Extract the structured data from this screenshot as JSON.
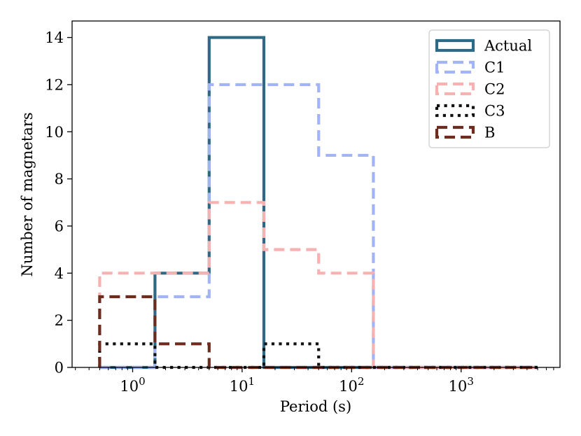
{
  "chart_data": {
    "type": "histogram-step",
    "title": "",
    "xlabel": "Period (s)",
    "ylabel": "Number of magnetars",
    "xscale": "log",
    "xlim": [
      0.28,
      8000
    ],
    "ylim": [
      0,
      14.7
    ],
    "x_ticks": [
      {
        "value": 1,
        "base": "10",
        "exp": "0"
      },
      {
        "value": 10,
        "base": "10",
        "exp": "1"
      },
      {
        "value": 100,
        "base": "10",
        "exp": "2"
      },
      {
        "value": 1000,
        "base": "10",
        "exp": "3"
      }
    ],
    "y_ticks": [
      0,
      2,
      4,
      6,
      8,
      10,
      12,
      14
    ],
    "bin_edges": [
      0.5,
      1.6,
      5.0,
      15.8,
      50,
      158,
      500,
      1580,
      5000
    ],
    "legend_position": "top-right",
    "series": [
      {
        "name": "Actual",
        "style": "solid",
        "color": "#2e6985",
        "values": [
          0,
          4,
          14,
          0,
          0,
          0,
          0,
          0
        ]
      },
      {
        "name": "C1",
        "style": "dashed",
        "color": "#a2b4f5",
        "values": [
          0,
          3,
          12,
          12,
          9,
          0,
          0,
          0
        ]
      },
      {
        "name": "C2",
        "style": "dashed",
        "color": "#f7b1b0",
        "values": [
          4,
          4,
          7,
          5,
          4,
          0,
          0,
          0
        ]
      },
      {
        "name": "C3",
        "style": "dotted",
        "color": "#111111",
        "values": [
          1,
          0,
          0,
          1,
          0,
          0,
          0,
          0
        ]
      },
      {
        "name": "B",
        "style": "dashed",
        "color": "#6e2c1f",
        "values": [
          3,
          1,
          0,
          0,
          0,
          0,
          0,
          0
        ]
      }
    ]
  }
}
